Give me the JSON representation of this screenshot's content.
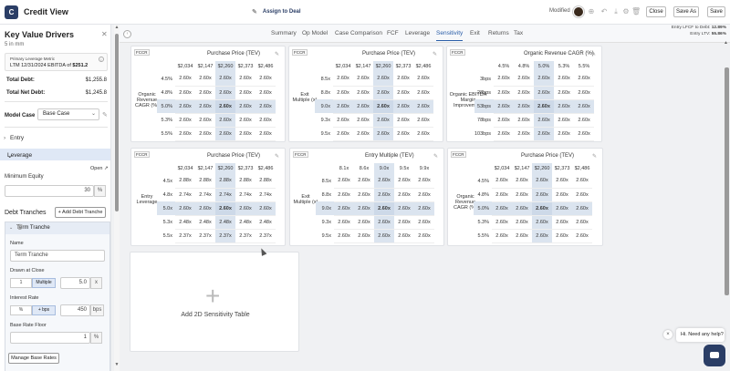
{
  "header": {
    "logo": "C",
    "title": "Credit View",
    "assign_label": "Assign to Deal",
    "modified_label": "Modified",
    "close_label": "Close",
    "save_as_label": "Save As",
    "save_label": "Save"
  },
  "sidebar": {
    "title": "Key Value Drivers",
    "subtitle": "5 in mm",
    "metric_label": "Primary Leverage Metric",
    "metric_period": "LTM 12/31/2024 EBITDA",
    "metric_of": "of",
    "metric_value": "$251.2",
    "total_debt_label": "Total Debt:",
    "total_debt_value": "$1,255.8",
    "total_net_debt_label": "Total Net Debt:",
    "total_net_debt_value": "$1,245.8",
    "model_case_label": "Model Case",
    "model_case_value": "Base Case",
    "entry_label": "Entry",
    "leverage_label": "Leverage",
    "open_label": "Open",
    "min_equity_label": "Minimum Equity",
    "min_equity_value": "30",
    "min_equity_unit": "%",
    "debt_tranches_label": "Debt Tranches",
    "add_tranche_label": "+ Add Debt Tranche",
    "tranche_title": "Term Tranche",
    "name_label": "Name",
    "name_value": "Term Tranche",
    "drawn_label": "Drawn at Close",
    "drawn_unit_x": "1",
    "drawn_multiple": "Multiple",
    "drawn_value": "5.0",
    "drawn_suffix": "x",
    "interest_label": "Interest Rate",
    "interest_pct": "%",
    "interest_bps": "+ bps",
    "interest_value": "450",
    "interest_suffix": "bps",
    "floor_label": "Base Rate Floor",
    "floor_value": "1",
    "floor_unit": "%",
    "manage_label": "Manage Base Rates"
  },
  "tabs": [
    "Summary",
    "Op Model",
    "Case Comparison",
    "FCF",
    "Leverage",
    "Sensitivity",
    "Exit",
    "Returns",
    "Tax"
  ],
  "active_tab": "Sensitivity",
  "ratios": {
    "line1_label": "Entry LFCF to Debt:",
    "line1_value": "12.89%",
    "line2_label": "Entry LTV:",
    "line2_value": "55.86%"
  },
  "badge": "FCCR",
  "tables": [
    {
      "title": "Purchase Price (TEV)",
      "row_label": "Organic Revenue CAGR (%)",
      "cols": [
        "$2,034",
        "$2,147",
        "$2,260",
        "$2,373",
        "$2,486"
      ],
      "rows": [
        {
          "h": "4.5%",
          "v": [
            "2.60x",
            "2.60x",
            "2.60x",
            "2.60x",
            "2.60x"
          ]
        },
        {
          "h": "4.8%",
          "v": [
            "2.60x",
            "2.60x",
            "2.60x",
            "2.60x",
            "2.60x"
          ]
        },
        {
          "h": "5.0%",
          "v": [
            "2.60x",
            "2.60x",
            "2.60x",
            "2.60x",
            "2.60x"
          ]
        },
        {
          "h": "5.3%",
          "v": [
            "2.60x",
            "2.60x",
            "2.60x",
            "2.60x",
            "2.60x"
          ]
        },
        {
          "h": "5.5%",
          "v": [
            "2.60x",
            "2.60x",
            "2.60x",
            "2.60x",
            "2.60x"
          ]
        }
      ]
    },
    {
      "title": "Purchase Price (TEV)",
      "row_label": "Exit Multiple (x)",
      "cols": [
        "$2,034",
        "$2,147",
        "$2,260",
        "$2,373",
        "$2,486"
      ],
      "rows": [
        {
          "h": "8.5x",
          "v": [
            "2.60x",
            "2.60x",
            "2.60x",
            "2.60x",
            "2.60x"
          ]
        },
        {
          "h": "8.8x",
          "v": [
            "2.60x",
            "2.60x",
            "2.60x",
            "2.60x",
            "2.60x"
          ]
        },
        {
          "h": "9.0x",
          "v": [
            "2.60x",
            "2.60x",
            "2.60x",
            "2.60x",
            "2.60x"
          ]
        },
        {
          "h": "9.3x",
          "v": [
            "2.60x",
            "2.60x",
            "2.60x",
            "2.60x",
            "2.60x"
          ]
        },
        {
          "h": "9.5x",
          "v": [
            "2.60x",
            "2.60x",
            "2.60x",
            "2.60x",
            "2.60x"
          ]
        }
      ]
    },
    {
      "title": "Organic Revenue CAGR (%)",
      "row_label": "Organic EBITDA Margin Improvement",
      "cols": [
        "4.5%",
        "4.8%",
        "5.0%",
        "5.3%",
        "5.5%"
      ],
      "rows": [
        {
          "h": "3bps",
          "v": [
            "2.60x",
            "2.60x",
            "2.60x",
            "2.60x",
            "2.60x"
          ]
        },
        {
          "h": "28bps",
          "v": [
            "2.60x",
            "2.60x",
            "2.60x",
            "2.60x",
            "2.60x"
          ]
        },
        {
          "h": "53bps",
          "v": [
            "2.60x",
            "2.60x",
            "2.60x",
            "2.60x",
            "2.60x"
          ]
        },
        {
          "h": "78bps",
          "v": [
            "2.60x",
            "2.60x",
            "2.60x",
            "2.60x",
            "2.60x"
          ]
        },
        {
          "h": "103bps",
          "v": [
            "2.60x",
            "2.60x",
            "2.60x",
            "2.60x",
            "2.60x"
          ]
        }
      ]
    },
    {
      "title": "Purchase Price (TEV)",
      "row_label": "Entry Leverage",
      "cols": [
        "$2,034",
        "$2,147",
        "$2,260",
        "$2,373",
        "$2,486"
      ],
      "rows": [
        {
          "h": "4.5x",
          "v": [
            "2.88x",
            "2.88x",
            "2.88x",
            "2.88x",
            "2.88x"
          ]
        },
        {
          "h": "4.8x",
          "v": [
            "2.74x",
            "2.74x",
            "2.74x",
            "2.74x",
            "2.74x"
          ]
        },
        {
          "h": "5.0x",
          "v": [
            "2.60x",
            "2.60x",
            "2.60x",
            "2.60x",
            "2.60x"
          ]
        },
        {
          "h": "5.3x",
          "v": [
            "2.48x",
            "2.48x",
            "2.48x",
            "2.48x",
            "2.48x"
          ]
        },
        {
          "h": "5.5x",
          "v": [
            "2.37x",
            "2.37x",
            "2.37x",
            "2.37x",
            "2.37x"
          ]
        }
      ]
    },
    {
      "title": "Entry Multiple (TEV)",
      "row_label": "Exit Multiple (x)",
      "cols": [
        "8.1x",
        "8.6x",
        "9.0x",
        "9.5x",
        "9.9x"
      ],
      "rows": [
        {
          "h": "8.5x",
          "v": [
            "2.60x",
            "2.60x",
            "2.60x",
            "2.60x",
            "2.60x"
          ]
        },
        {
          "h": "8.8x",
          "v": [
            "2.60x",
            "2.60x",
            "2.60x",
            "2.60x",
            "2.60x"
          ]
        },
        {
          "h": "9.0x",
          "v": [
            "2.60x",
            "2.60x",
            "2.60x",
            "2.60x",
            "2.60x"
          ]
        },
        {
          "h": "9.3x",
          "v": [
            "2.60x",
            "2.60x",
            "2.60x",
            "2.60x",
            "2.60x"
          ]
        },
        {
          "h": "9.5x",
          "v": [
            "2.60x",
            "2.60x",
            "2.60x",
            "2.60x",
            "2.60x"
          ]
        }
      ]
    },
    {
      "title": "Purchase Price (TEV)",
      "row_label": "Organic Revenue CAGR (%)",
      "cols": [
        "$2,034",
        "$2,147",
        "$2,260",
        "$2,373",
        "$2,486"
      ],
      "rows": [
        {
          "h": "4.5%",
          "v": [
            "2.60x",
            "2.60x",
            "2.60x",
            "2.60x",
            "2.60x"
          ]
        },
        {
          "h": "4.8%",
          "v": [
            "2.60x",
            "2.60x",
            "2.60x",
            "2.60x",
            "2.60x"
          ]
        },
        {
          "h": "5.0%",
          "v": [
            "2.60x",
            "2.60x",
            "2.60x",
            "2.60x",
            "2.60x"
          ]
        },
        {
          "h": "5.3%",
          "v": [
            "2.60x",
            "2.60x",
            "2.60x",
            "2.60x",
            "2.60x"
          ]
        },
        {
          "h": "5.5%",
          "v": [
            "2.60x",
            "2.60x",
            "2.60x",
            "2.60x",
            "2.60x"
          ]
        }
      ]
    }
  ],
  "add_table_label": "Add 2D Sensitivity Table",
  "add_table_plus": "+",
  "chat": {
    "message": "Hi. Need any help?",
    "close": "×"
  },
  "colors": {
    "brand": "#2b3e66",
    "accent": "#2b5ea8",
    "highlight": "#dbe4ef"
  }
}
